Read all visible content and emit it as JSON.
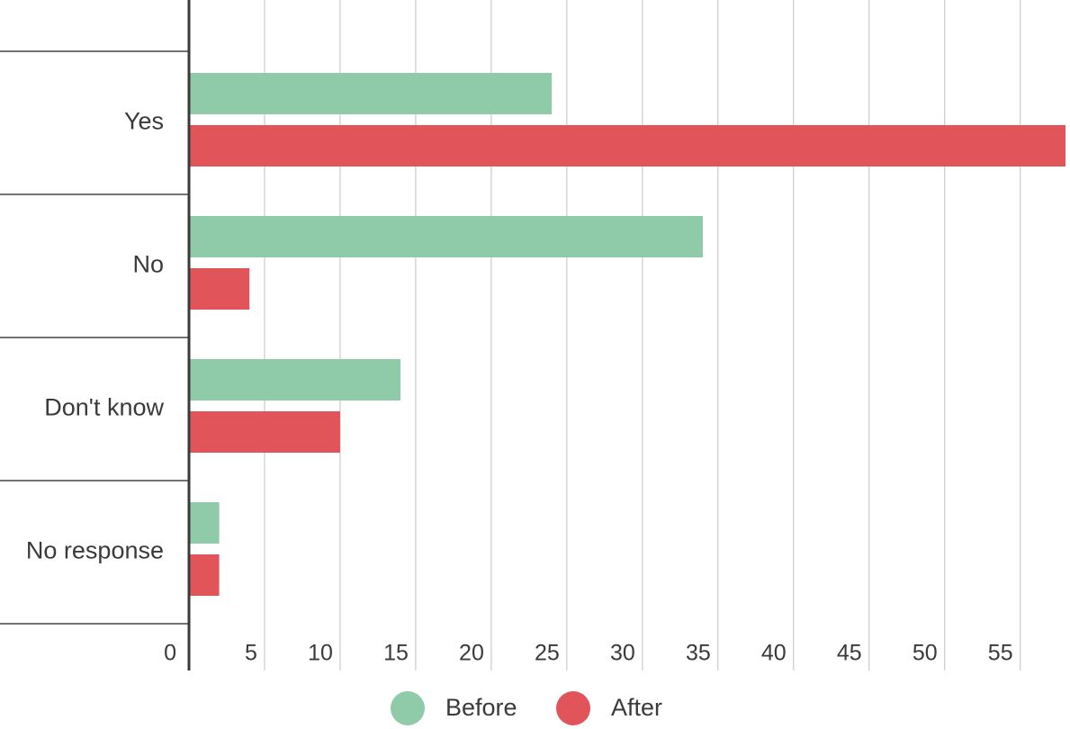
{
  "chart_data": {
    "type": "bar",
    "orientation": "horizontal",
    "title": "",
    "xlabel": "",
    "ylabel": "",
    "categories": [
      "Yes",
      "No",
      "Don't know",
      "No response"
    ],
    "series": [
      {
        "name": "Before",
        "color": "#8fcaa9",
        "values": [
          24,
          34,
          14,
          2
        ]
      },
      {
        "name": "After",
        "color": "#e0545a",
        "values": [
          58,
          4,
          10,
          2
        ]
      }
    ],
    "xlim": [
      0,
      58
    ],
    "xticks": [
      0,
      5,
      10,
      15,
      20,
      25,
      30,
      35,
      40,
      45,
      50,
      55
    ],
    "grid": true,
    "legend_position": "bottom-center"
  }
}
